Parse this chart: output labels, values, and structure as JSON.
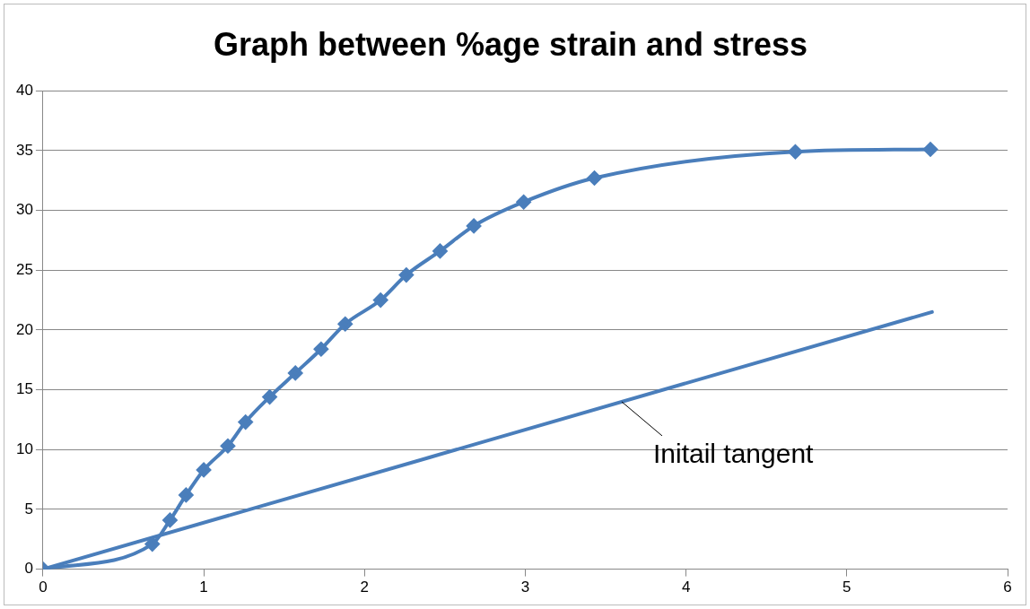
{
  "chart_data": {
    "type": "line",
    "title": "Graph between %age strain and stress",
    "xlim": [
      0,
      6
    ],
    "xticks": [
      0,
      1,
      2,
      3,
      4,
      5,
      6
    ],
    "ylim": [
      0,
      40
    ],
    "yticks": [
      0,
      5,
      10,
      15,
      20,
      25,
      30,
      35,
      40
    ],
    "grid": "y",
    "legend": false,
    "marker": "diamond",
    "line_style": "solid",
    "series": [
      {
        "color": "#4a7ebb",
        "x": [
          0,
          0.68,
          0.79,
          0.89,
          1.0,
          1.15,
          1.26,
          1.41,
          1.57,
          1.73,
          1.88,
          2.1,
          2.26,
          2.47,
          2.68,
          2.99,
          3.43,
          4.68,
          5.52
        ],
        "values": [
          0,
          2.1,
          4.1,
          6.2,
          8.3,
          10.3,
          12.3,
          14.4,
          16.4,
          18.4,
          20.5,
          22.5,
          24.6,
          26.6,
          28.7,
          30.7,
          32.7,
          34.9,
          35.1
        ]
      },
      {
        "color": "#4a7ebb",
        "marker": "none",
        "x": [
          0,
          5.53
        ],
        "values": [
          0,
          21.5
        ]
      }
    ],
    "annotations": [
      {
        "text": "Initail tangent",
        "x": 3.6,
        "y": 14
      }
    ]
  }
}
